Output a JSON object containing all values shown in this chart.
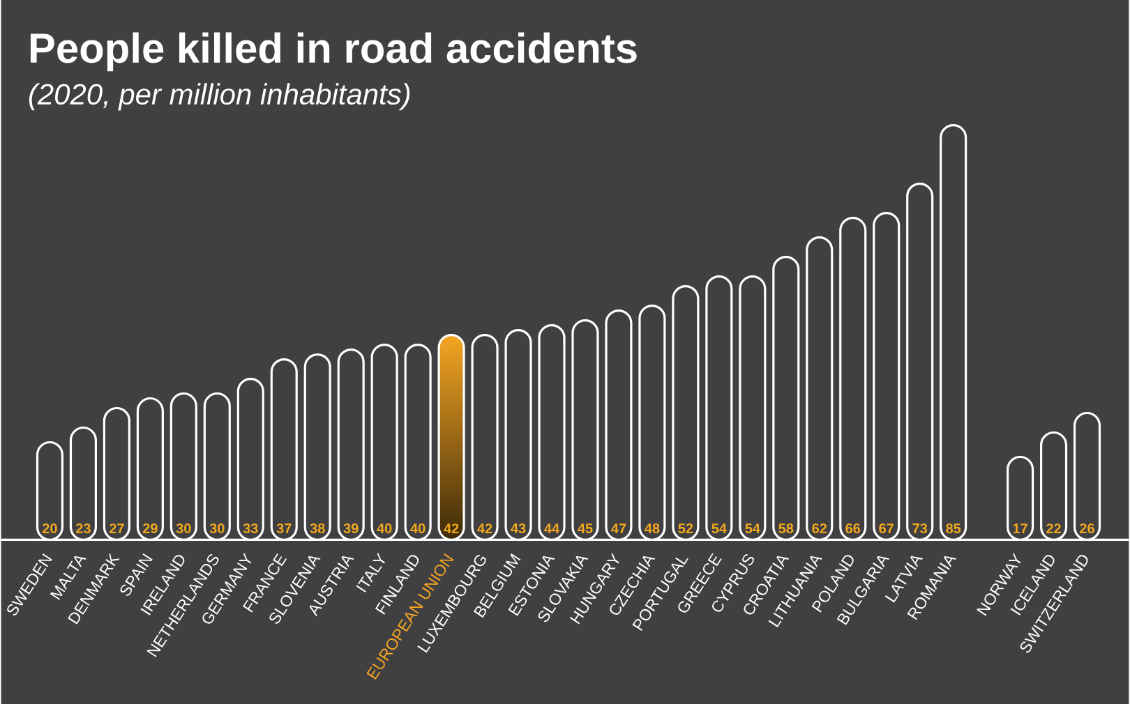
{
  "chart_data": {
    "type": "bar",
    "title": "People killed in road accidents",
    "subtitle": "(2020, per million inhabitants)",
    "categories": [
      "SWEDEN",
      "MALTA",
      "DENMARK",
      "SPAIN",
      "IRELAND",
      "NETHERLANDS",
      "GERMANY",
      "FRANCE",
      "SLOVENIA",
      "AUSTRIA",
      "ITALY",
      "FINLAND",
      "EUROPEAN UNION",
      "LUXEMBOURG",
      "BELGIUM",
      "ESTONIA",
      "SLOVAKIA",
      "HUNGARY",
      "CZECHIA",
      "PORTUGAL",
      "GREECE",
      "CYPRUS",
      "CROATIA",
      "LITHUANIA",
      "POLAND",
      "BULGARIA",
      "LATVIA",
      "ROMANIA",
      null,
      "NORWAY",
      "ICELAND",
      "SWITZERLAND"
    ],
    "values": [
      20,
      23,
      27,
      29,
      30,
      30,
      33,
      37,
      38,
      39,
      40,
      40,
      42,
      42,
      43,
      44,
      45,
      47,
      48,
      52,
      54,
      54,
      58,
      62,
      66,
      67,
      73,
      85,
      null,
      17,
      22,
      26
    ],
    "colors": [
      "#404042",
      "#404042",
      "#404042",
      "#404042",
      "#404042",
      "#404042",
      "#404042",
      "#404042",
      "#404042",
      "#404042",
      "#404042",
      "#404042",
      "#f5a623",
      "#404042",
      "#404042",
      "#404042",
      "#404042",
      "#404042",
      "#404042",
      "#404042",
      "#404042",
      "#404042",
      "#404042",
      "#404042",
      "#404042",
      "#404042",
      "#404042",
      "#404042",
      null,
      "#404042",
      "#404042",
      "#404042"
    ],
    "data_labels": true
  }
}
